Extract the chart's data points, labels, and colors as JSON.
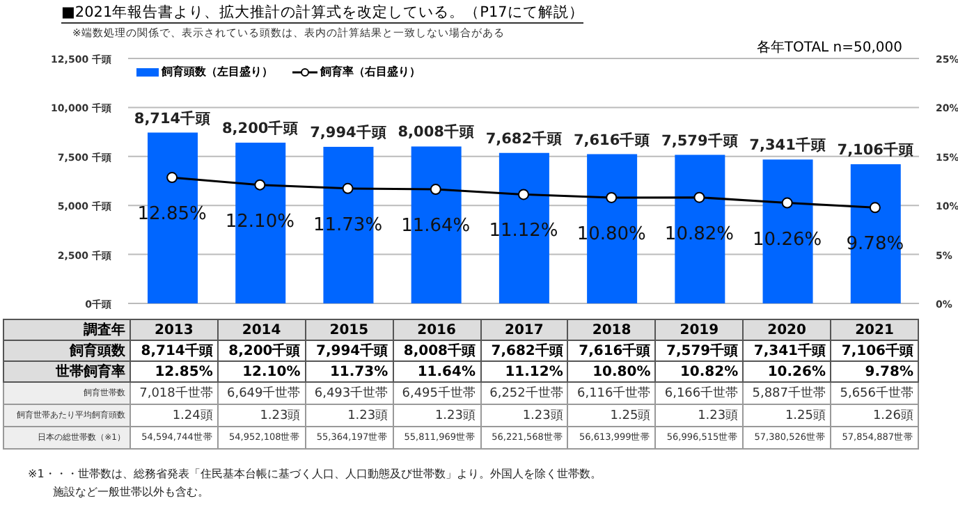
{
  "chart_data": {
    "type": "bar",
    "title": "■2021年報告書より、拡大推計の計算式を改定している。（P17にて解説）",
    "subtitle": "※端数処理の関係で、表示されている頭数は、表内の計算結果と一致しない場合がある",
    "xlabel": "調査年",
    "categories": [
      "2013",
      "2014",
      "2015",
      "2016",
      "2017",
      "2018",
      "2019",
      "2020",
      "2021"
    ],
    "series": [
      {
        "name": "飼育頭数（左目盛り）",
        "color": "#0066ff",
        "values": [
          8714,
          8200,
          7994,
          8008,
          7682,
          7616,
          7579,
          7341,
          7106
        ],
        "value_labels": [
          "8,714千頭",
          "8,200千頭",
          "7,994千頭",
          "8,008千頭",
          "7,682千頭",
          "7,616千頭",
          "7,579千頭",
          "7,341千頭",
          "7,106千頭"
        ]
      },
      {
        "name": "飼育率（右目盛り）",
        "type": "line",
        "axis": "y2",
        "color": "#000000",
        "values": [
          12.85,
          12.1,
          11.73,
          11.64,
          11.12,
          10.8,
          10.82,
          10.26,
          9.78
        ],
        "value_labels": [
          "12.85%",
          "12.10%",
          "11.73%",
          "11.64%",
          "11.12%",
          "10.80%",
          "10.82%",
          "10.26%",
          "9.78%"
        ]
      }
    ],
    "ylim": [
      0,
      12500
    ],
    "yticks": [
      {
        "value": 0,
        "label": "0千頭"
      },
      {
        "value": 2500,
        "label": "2,500 千頭"
      },
      {
        "value": 5000,
        "label": "5,000 千頭"
      },
      {
        "value": 7500,
        "label": "7,500 千頭"
      },
      {
        "value": 10000,
        "label": "10,000 千頭"
      },
      {
        "value": 12500,
        "label": "12,500 千頭"
      }
    ],
    "y2lim": [
      0,
      25
    ],
    "y2ticks": [
      {
        "value": 0,
        "label": "0%"
      },
      {
        "value": 5,
        "label": "5%"
      },
      {
        "value": 10,
        "label": "10%"
      },
      {
        "value": 15,
        "label": "15%"
      },
      {
        "value": 20,
        "label": "20%"
      },
      {
        "value": 25,
        "label": "25%"
      }
    ],
    "grid": "y",
    "legend": "top left",
    "marker": "circle",
    "line_style": "solid",
    "tick_labels": "y",
    "annotations": [
      "各年TOTAL n=50,000",
      "飼育頭数",
      "世帯飼育率",
      "飼育世帯数",
      "7,018千世帯",
      "6,649千世帯",
      "6,493千世帯",
      "6,495千世帯",
      "6,252千世帯",
      "6,116千世帯",
      "6,166千世帯",
      "5,887千世帯",
      "5,656千世帯",
      "飼育世帯あたり平均飼育頭数",
      "1.24頭",
      "1.23頭",
      "1.23頭",
      "1.23頭",
      "1.23頭",
      "1.25頭",
      "1.23頭",
      "1.25頭",
      "1.26頭",
      "日本の総世帯数（※1）",
      "54,594,744世帯",
      "54,952,108世帯",
      "55,364,197世帯",
      "55,811,969世帯",
      "56,221,568世帯",
      "56,613,999世帯",
      "56,996,515世帯",
      "57,380,526世帯",
      "57,854,887世帯",
      "※1・・・世帯数は、総務省発表「住民基本台帳に基づく人口、人口動態及び世帯数」より。外国人を除く世帯数。",
      "施設など一般世帯以外も含む。"
    ]
  }
}
